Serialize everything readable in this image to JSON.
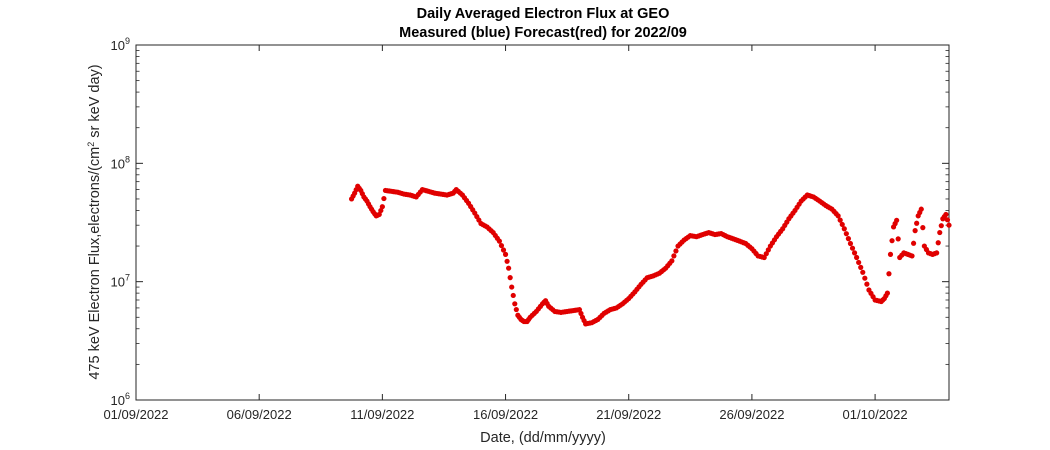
{
  "chart_data": {
    "type": "scatter",
    "title": "Daily Averaged Electron Flux at GEO",
    "subtitle": "Measured (blue) Forecast(red) for 2022/09",
    "xlabel": "Date, (dd/mm/yyyy)",
    "ylabel": "475 keV Electron Flux,electrons/(cm² sr keV day)",
    "ylabel_parts": {
      "before": "475 keV Electron Flux,electrons/(cm",
      "sup": "2",
      "after": " sr keV day)"
    },
    "y_scale": "log",
    "xlim": [
      "2022-09-01",
      "2022-10-04"
    ],
    "ylim": [
      1000000,
      1000000000
    ],
    "x_ticks": [
      "01/09/2022",
      "06/09/2022",
      "11/09/2022",
      "16/09/2022",
      "21/09/2022",
      "26/09/2022",
      "01/10/2022"
    ],
    "y_ticks": [
      {
        "value": 1000000,
        "base": "10",
        "exp": "6"
      },
      {
        "value": 10000000,
        "base": "10",
        "exp": "7"
      },
      {
        "value": 100000000,
        "base": "10",
        "exp": "8"
      },
      {
        "value": 1000000000,
        "base": "10",
        "exp": "9"
      }
    ],
    "grid": false,
    "series": [
      {
        "color": "#e00000",
        "points": [
          [
            "2022-09-09 18:00",
            50000000.0
          ],
          [
            "2022-09-09 21:00",
            56000000.0
          ],
          [
            "2022-09-10 00:00",
            64000000.0
          ],
          [
            "2022-09-10 03:00",
            59000000.0
          ],
          [
            "2022-09-10 06:00",
            52000000.0
          ],
          [
            "2022-09-10 09:00",
            48000000.0
          ],
          [
            "2022-09-10 12:00",
            43000000.0
          ],
          [
            "2022-09-10 15:00",
            39000000.0
          ],
          [
            "2022-09-10 18:00",
            36000000.0
          ],
          [
            "2022-09-10 21:00",
            37000000.0
          ],
          [
            "2022-09-11 00:00",
            43000000.0
          ],
          [
            "2022-09-11 03:00",
            59000000.0
          ],
          [
            "2022-09-11 09:00",
            58000000.0
          ],
          [
            "2022-09-11 15:00",
            57000000.0
          ],
          [
            "2022-09-11 21:00",
            55000000.0
          ],
          [
            "2022-09-12 03:00",
            54000000.0
          ],
          [
            "2022-09-12 09:00",
            52000000.0
          ],
          [
            "2022-09-12 15:00",
            60000000.0
          ],
          [
            "2022-09-12 21:00",
            58000000.0
          ],
          [
            "2022-09-13 03:00",
            56000000.0
          ],
          [
            "2022-09-13 09:00",
            55000000.0
          ],
          [
            "2022-09-13 15:00",
            54000000.0
          ],
          [
            "2022-09-13 21:00",
            56000000.0
          ],
          [
            "2022-09-14 00:00",
            60000000.0
          ],
          [
            "2022-09-14 06:00",
            54000000.0
          ],
          [
            "2022-09-14 12:00",
            46000000.0
          ],
          [
            "2022-09-14 18:00",
            38000000.0
          ],
          [
            "2022-09-15 00:00",
            31000000.0
          ],
          [
            "2022-09-15 06:00",
            29000000.0
          ],
          [
            "2022-09-15 12:00",
            26000000.0
          ],
          [
            "2022-09-15 18:00",
            22000000.0
          ],
          [
            "2022-09-16 00:00",
            17000000.0
          ],
          [
            "2022-09-16 03:00",
            13000000.0
          ],
          [
            "2022-09-16 06:00",
            9000000.0
          ],
          [
            "2022-09-16 09:00",
            6500000.0
          ],
          [
            "2022-09-16 12:00",
            5200000.0
          ],
          [
            "2022-09-16 15:00",
            4800000.0
          ],
          [
            "2022-09-16 18:00",
            4600000.0
          ],
          [
            "2022-09-16 21:00",
            4600000.0
          ],
          [
            "2022-09-17 00:00",
            5000000.0
          ],
          [
            "2022-09-17 06:00",
            5600000.0
          ],
          [
            "2022-09-17 12:00",
            6500000.0
          ],
          [
            "2022-09-17 15:00",
            6900000.0
          ],
          [
            "2022-09-17 18:00",
            6200000.0
          ],
          [
            "2022-09-18 00:00",
            5600000.0
          ],
          [
            "2022-09-18 06:00",
            5500000.0
          ],
          [
            "2022-09-18 12:00",
            5600000.0
          ],
          [
            "2022-09-18 18:00",
            5700000.0
          ],
          [
            "2022-09-19 00:00",
            5800000.0
          ],
          [
            "2022-09-19 03:00",
            5000000.0
          ],
          [
            "2022-09-19 06:00",
            4400000.0
          ],
          [
            "2022-09-19 12:00",
            4500000.0
          ],
          [
            "2022-09-19 18:00",
            4800000.0
          ],
          [
            "2022-09-20 00:00",
            5400000.0
          ],
          [
            "2022-09-20 06:00",
            5800000.0
          ],
          [
            "2022-09-20 12:00",
            6000000.0
          ],
          [
            "2022-09-20 18:00",
            6500000.0
          ],
          [
            "2022-09-21 00:00",
            7200000.0
          ],
          [
            "2022-09-21 06:00",
            8200000.0
          ],
          [
            "2022-09-21 12:00",
            9500000.0
          ],
          [
            "2022-09-21 18:00",
            10800000.0
          ],
          [
            "2022-09-22 00:00",
            11200000.0
          ],
          [
            "2022-09-22 06:00",
            11800000.0
          ],
          [
            "2022-09-22 12:00",
            13000000.0
          ],
          [
            "2022-09-22 18:00",
            15000000.0
          ],
          [
            "2022-09-23 00:00",
            20000000.0
          ],
          [
            "2022-09-23 06:00",
            22500000.0
          ],
          [
            "2022-09-23 12:00",
            24500000.0
          ],
          [
            "2022-09-23 18:00",
            24000000.0
          ],
          [
            "2022-09-24 00:00",
            25000000.0
          ],
          [
            "2022-09-24 06:00",
            26000000.0
          ],
          [
            "2022-09-24 12:00",
            25000000.0
          ],
          [
            "2022-09-24 18:00",
            25500000.0
          ],
          [
            "2022-09-25 00:00",
            24000000.0
          ],
          [
            "2022-09-25 06:00",
            23000000.0
          ],
          [
            "2022-09-25 12:00",
            22000000.0
          ],
          [
            "2022-09-25 18:00",
            21000000.0
          ],
          [
            "2022-09-26 00:00",
            19000000.0
          ],
          [
            "2022-09-26 06:00",
            16500000.0
          ],
          [
            "2022-09-26 12:00",
            16000000.0
          ],
          [
            "2022-09-26 18:00",
            20000000.0
          ],
          [
            "2022-09-27 00:00",
            24000000.0
          ],
          [
            "2022-09-27 06:00",
            28000000.0
          ],
          [
            "2022-09-27 12:00",
            34000000.0
          ],
          [
            "2022-09-27 18:00",
            40000000.0
          ],
          [
            "2022-09-28 00:00",
            48000000.0
          ],
          [
            "2022-09-28 06:00",
            54000000.0
          ],
          [
            "2022-09-28 12:00",
            52000000.0
          ],
          [
            "2022-09-28 18:00",
            48000000.0
          ],
          [
            "2022-09-29 00:00",
            44000000.0
          ],
          [
            "2022-09-29 06:00",
            41000000.0
          ],
          [
            "2022-09-29 12:00",
            36000000.0
          ],
          [
            "2022-09-29 18:00",
            28000000.0
          ],
          [
            "2022-09-30 00:00",
            21000000.0
          ],
          [
            "2022-09-30 06:00",
            16000000.0
          ],
          [
            "2022-09-30 12:00",
            12000000.0
          ],
          [
            "2022-09-30 18:00",
            8500000.0
          ],
          [
            "2022-10-01 00:00",
            7000000.0
          ],
          [
            "2022-10-01 06:00",
            6800000.0
          ],
          [
            "2022-10-01 09:00",
            7200000.0
          ],
          [
            "2022-10-01 12:00",
            8000000.0
          ],
          [
            "2022-10-01 15:00",
            17000000.0
          ],
          [
            "2022-10-01 18:00",
            29000000.0
          ],
          [
            "2022-10-01 21:00",
            33000000.0
          ],
          [
            "2022-10-02 00:00",
            16000000.0
          ],
          [
            "2022-10-02 04:00",
            17500000.0
          ],
          [
            "2022-10-02 08:00",
            17000000.0
          ],
          [
            "2022-10-02 12:00",
            16500000.0
          ],
          [
            "2022-10-02 15:00",
            27000000.0
          ],
          [
            "2022-10-02 18:00",
            36000000.0
          ],
          [
            "2022-10-02 21:00",
            41000000.0
          ],
          [
            "2022-10-03 00:00",
            20000000.0
          ],
          [
            "2022-10-03 04:00",
            17500000.0
          ],
          [
            "2022-10-03 08:00",
            17000000.0
          ],
          [
            "2022-10-03 12:00",
            17500000.0
          ],
          [
            "2022-10-03 15:00",
            26000000.0
          ],
          [
            "2022-10-03 18:00",
            34000000.0
          ],
          [
            "2022-10-03 21:00",
            37000000.0
          ],
          [
            "2022-10-04 00:00",
            30000000.0
          ]
        ]
      }
    ]
  }
}
